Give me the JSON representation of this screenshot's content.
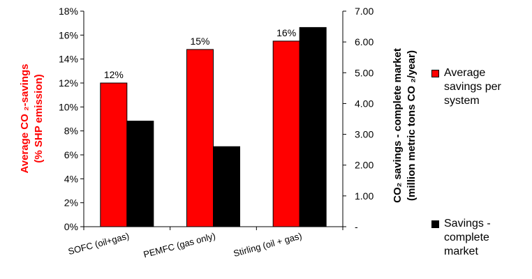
{
  "chart_data": {
    "type": "bar",
    "categories": [
      "SOFC (oil+gas)",
      "PEMFC (gas only)",
      "Stirling (oil + gas)"
    ],
    "series": [
      {
        "name": "Average savings per system",
        "axis": "left",
        "values": [
          12,
          14.8,
          15.5
        ],
        "data_labels": [
          "12%",
          "15%",
          "16%"
        ],
        "color": "#ff0000"
      },
      {
        "name": "Savings - complete market",
        "axis": "right",
        "values": [
          3.43,
          2.6,
          6.47
        ],
        "color": "#000000"
      }
    ],
    "y_left": {
      "label_line1": "Average CO ₂-savings",
      "label_line2": "(% SHP emission)",
      "ylim": [
        0,
        18
      ],
      "ticks": [
        "0%",
        "2%",
        "4%",
        "6%",
        "8%",
        "10%",
        "12%",
        "14%",
        "16%",
        "18%"
      ],
      "color": "#ff0000"
    },
    "y_right": {
      "label_line1": "CO₂ savings - complete market",
      "label_line2": "(million metric tons CO  ₂/year)",
      "ylim": [
        0,
        7
      ],
      "ticks": [
        "-",
        "1.00",
        "2.00",
        "3.00",
        "4.00",
        "5.00",
        "6.00",
        "7.00"
      ],
      "color": "#000000"
    },
    "legend_position": "right",
    "grid": false
  },
  "legend": [
    {
      "lines": [
        "Average",
        "savings per",
        "system"
      ],
      "color": "#ff0000"
    },
    {
      "lines": [
        "Savings -",
        "complete",
        "market"
      ],
      "color": "#000000"
    }
  ]
}
